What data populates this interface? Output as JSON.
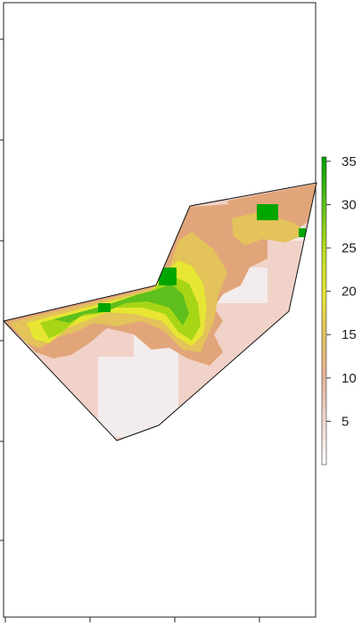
{
  "map": {
    "colors": {
      "ramp": [
        "#f2f2f2",
        "#efc9bc",
        "#e2a57a",
        "#e3c35a",
        "#e6e633",
        "#a6d616",
        "#5fbf1c",
        "#00a600"
      ]
    },
    "layers": [
      {
        "id": "mid",
        "color": "#e2a57a"
      },
      {
        "id": "yellow-a",
        "color": "#e3c35a"
      },
      {
        "id": "yellow-b",
        "color": "#e6e633"
      },
      {
        "id": "green-a",
        "color": "#a6d616"
      },
      {
        "id": "green-b",
        "color": "#5fbf1c"
      },
      {
        "id": "green-c",
        "color": "#00a600"
      }
    ]
  },
  "legend": {
    "ticks": [
      {
        "value": 5,
        "label": "5"
      },
      {
        "value": 10,
        "label": "10"
      },
      {
        "value": 15,
        "label": "15"
      },
      {
        "value": 20,
        "label": "20"
      },
      {
        "value": 25,
        "label": "25"
      },
      {
        "value": 30,
        "label": "30"
      },
      {
        "value": 35,
        "label": "35"
      }
    ],
    "min": 0,
    "max": 35.5
  }
}
